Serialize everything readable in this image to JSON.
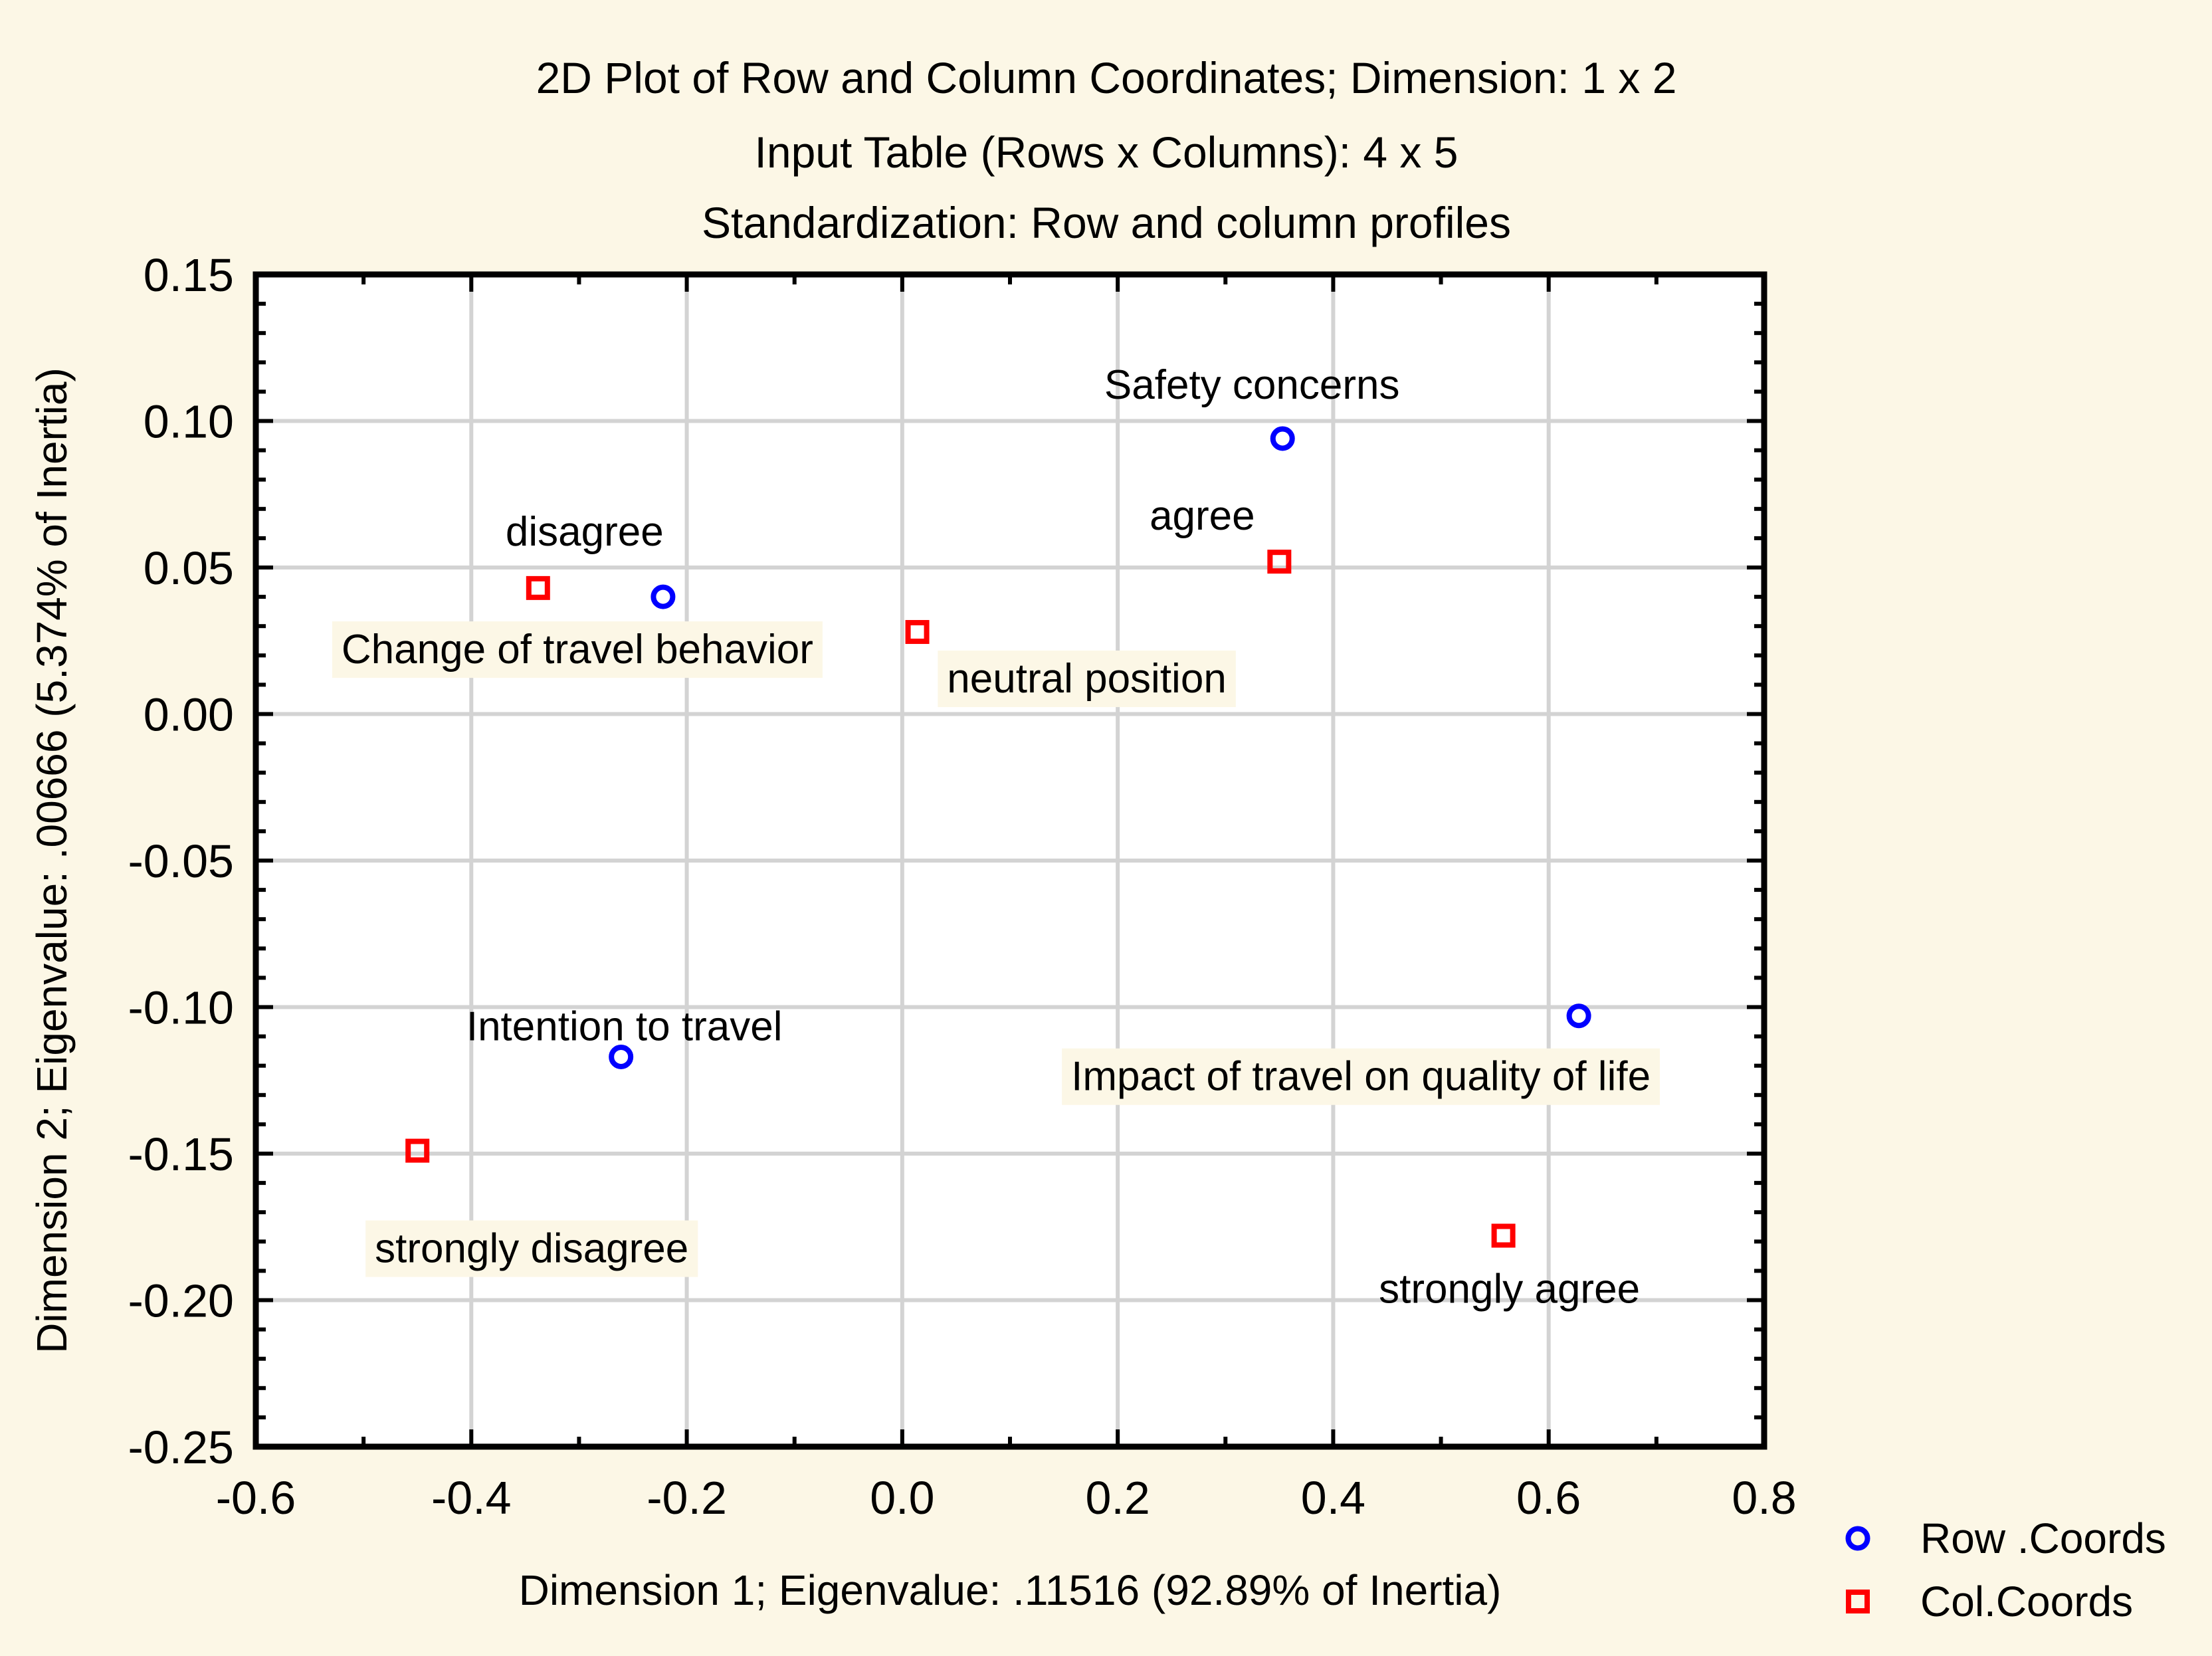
{
  "page": {
    "background_color": "#FCF7E6",
    "plot_background_color": "#FFFFFF",
    "gridline_color": "#D3D3D3",
    "frame_color": "#000000",
    "row_color": "#0000FF",
    "col_color": "#FF0000"
  },
  "chart_data": {
    "type": "scatter",
    "titles": [
      "2D Plot of Row and Column Coordinates; Dimension:  1 x  2",
      "Input Table (Rows x Columns): 4 x 5",
      "Standardization: Row and column profiles"
    ],
    "xlabel": "Dimension 1; Eigenvalue: .11516 (92.89% of Inertia)",
    "ylabel": "Dimension 2; Eigenvalue: .00666 (5.374% of Inertia)",
    "xlim": [
      -0.6,
      0.8
    ],
    "ylim": [
      -0.25,
      0.15
    ],
    "x_major_step": 0.2,
    "x_minor_step": 0.1,
    "y_major_step": 0.05,
    "y_minor_step": 0.01,
    "x_tick_labels": [
      "-0.6",
      "-0.4",
      "-0.2",
      "0.0",
      "0.2",
      "0.4",
      "0.6",
      "0.8"
    ],
    "y_tick_labels": [
      "0.15",
      "0.10",
      "0.05",
      "0.00",
      "-0.05",
      "-0.10",
      "-0.15",
      "-0.20",
      "-0.25"
    ],
    "grid": true,
    "legend_position": "bottom-right",
    "series": [
      {
        "name": "Row .Coords",
        "marker": "circle",
        "color": "#0000FF",
        "points": [
          {
            "label": "Safety concerns",
            "x": 0.353,
            "y": 0.094,
            "label_dx": -46,
            "label_dy": -82,
            "label_bg": false
          },
          {
            "label": "Change of travel behavior",
            "x": -0.222,
            "y": 0.04,
            "label_dx": -129,
            "label_dy": 78,
            "label_bg": true
          },
          {
            "label": "Intention to travel",
            "x": -0.261,
            "y": -0.117,
            "label_dx": 5,
            "label_dy": -47,
            "label_bg": false
          },
          {
            "label": "Impact of travel on quality of life",
            "x": 0.628,
            "y": -0.103,
            "label_dx": -328,
            "label_dy": 90,
            "label_bg": true
          }
        ]
      },
      {
        "name": "Col.Coords",
        "marker": "square",
        "color": "#FF0000",
        "points": [
          {
            "label": "disagree",
            "x": -0.338,
            "y": 0.043,
            "label_dx": 70,
            "label_dy": -86,
            "label_bg": false
          },
          {
            "label": "agree",
            "x": 0.35,
            "y": 0.052,
            "label_dx": -116,
            "label_dy": -70,
            "label_bg": false
          },
          {
            "label": "neutral position",
            "x": 0.014,
            "y": 0.028,
            "label_dx": 255,
            "label_dy": 69,
            "label_bg": true
          },
          {
            "label": "strongly disagree",
            "x": -0.45,
            "y": -0.149,
            "label_dx": 172,
            "label_dy": 146,
            "label_bg": true
          },
          {
            "label": "strongly agree",
            "x": 0.558,
            "y": -0.178,
            "label_dx": 9,
            "label_dy": 79,
            "label_bg": false
          }
        ]
      }
    ],
    "legend": {
      "items": [
        {
          "label": "Row .Coords",
          "marker": "circle",
          "color": "#0000FF"
        },
        {
          "label": "Col.Coords",
          "marker": "square",
          "color": "#FF0000"
        }
      ]
    }
  }
}
